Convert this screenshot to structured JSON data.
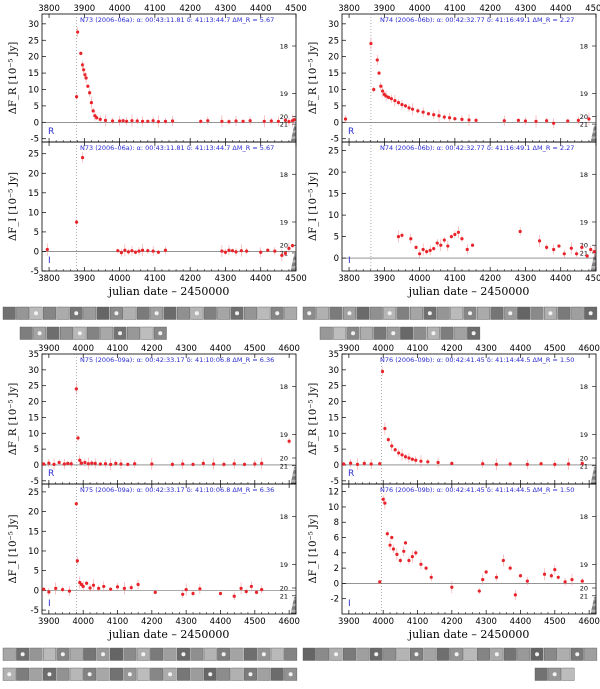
{
  "accent_colors": {
    "data": "#e8232a",
    "header": "#2a2ad0",
    "axis": "#000000",
    "stamp_bg": "#8a8a8a"
  },
  "chart_data": [
    {
      "type": "scatter",
      "panel_id": "N73-R",
      "band": "R",
      "header": "N73 (2006–06a):  α: 00:43:11.81  δ: 41:13:44.7  ΔM_R = 5.67",
      "ylabel": "ΔF_R [10⁻⁵ Jy]",
      "xlabel": "",
      "xlim": [
        3780,
        4500
      ],
      "ylim": [
        -6,
        33
      ],
      "xticks": [
        3800,
        3900,
        4000,
        4100,
        4200,
        4300,
        4400,
        4500
      ],
      "yticks": [
        -5,
        0,
        5,
        10,
        15,
        20,
        25,
        30
      ],
      "mag_ticks": [
        "18",
        "19",
        "20",
        "21"
      ],
      "eruption_x": 3878,
      "points": [
        [
          3745,
          0.2
        ],
        [
          3760,
          0.8
        ],
        [
          3770,
          -0.3
        ],
        [
          3878,
          7.8
        ],
        [
          3881,
          27.5
        ],
        [
          3890,
          21
        ],
        [
          3895,
          17.5
        ],
        [
          3898,
          16
        ],
        [
          3902,
          14.5
        ],
        [
          3905,
          13.5
        ],
        [
          3910,
          11
        ],
        [
          3915,
          9
        ],
        [
          3920,
          6
        ],
        [
          3925,
          3.5
        ],
        [
          3930,
          2
        ],
        [
          3935,
          1.4
        ],
        [
          3945,
          0.9
        ],
        [
          3960,
          0.6
        ],
        [
          3980,
          0.4
        ],
        [
          4000,
          0.4
        ],
        [
          4010,
          0.5
        ],
        [
          4020,
          0.3
        ],
        [
          4035,
          0.5
        ],
        [
          4050,
          0.4
        ],
        [
          4065,
          0.3
        ],
        [
          4080,
          0.3
        ],
        [
          4095,
          0.5
        ],
        [
          4110,
          0.2
        ],
        [
          4130,
          0.3
        ],
        [
          4150,
          0.4
        ],
        [
          4230,
          0.3
        ],
        [
          4250,
          0.5
        ],
        [
          4290,
          0.3
        ],
        [
          4310,
          0.2
        ],
        [
          4330,
          0.4
        ],
        [
          4350,
          0.3
        ],
        [
          4370,
          0.5
        ],
        [
          4410,
          0.3
        ],
        [
          4430,
          0.4
        ],
        [
          4450,
          0.3
        ],
        [
          4470,
          0.6
        ],
        [
          4480,
          0.2
        ],
        [
          4490,
          0.5
        ],
        [
          4495,
          0.8
        ]
      ]
    },
    {
      "type": "scatter",
      "panel_id": "N73-I",
      "band": "I",
      "header": "N73 (2006–06a):  α: 00:43:11.81  δ: 41:13:44.7  ΔM_R = 5.67",
      "ylabel": "ΔF_I [10⁻⁵ Jy]",
      "xlabel": "julian date – 2450000",
      "xlim": [
        3780,
        4500
      ],
      "ylim": [
        -5,
        28
      ],
      "xticks": [
        3800,
        3900,
        4000,
        4100,
        4200,
        4300,
        4400,
        4500
      ],
      "yticks": [
        -5,
        0,
        5,
        10,
        15,
        20,
        25
      ],
      "mag_ticks": [
        "18",
        "19",
        "20",
        "21"
      ],
      "eruption_x": 3878,
      "points": [
        [
          3752,
          1.0
        ],
        [
          3768,
          0.8
        ],
        [
          3795,
          0.5
        ],
        [
          3878,
          7.5
        ],
        [
          3895,
          24
        ],
        [
          3995,
          0.2
        ],
        [
          4005,
          -0.3
        ],
        [
          4015,
          0.3
        ],
        [
          4025,
          -0.1
        ],
        [
          4035,
          0.2
        ],
        [
          4045,
          -0.2
        ],
        [
          4055,
          0.1
        ],
        [
          4065,
          0.3
        ],
        [
          4080,
          0.2
        ],
        [
          4095,
          0.1
        ],
        [
          4110,
          -0.2
        ],
        [
          4130,
          0.3
        ],
        [
          4290,
          0.1
        ],
        [
          4300,
          -0.2
        ],
        [
          4310,
          0.3
        ],
        [
          4320,
          0.2
        ],
        [
          4330,
          -0.1
        ],
        [
          4345,
          0.2
        ],
        [
          4360,
          0.1
        ],
        [
          4400,
          -0.2
        ],
        [
          4420,
          0.3
        ],
        [
          4440,
          0.1
        ],
        [
          4460,
          -1
        ],
        [
          4470,
          -0.5
        ],
        [
          4480,
          0.8
        ],
        [
          4490,
          1.5
        ]
      ]
    },
    {
      "type": "scatter",
      "panel_id": "N74-R",
      "band": "R",
      "header": "N74 (2006–06b):  α: 00:42:32.77  δ: 41:16:49.1  ΔM_R = 2.27",
      "ylabel": "ΔF_R [10⁻⁵ Jy]",
      "xlabel": "",
      "xlim": [
        3780,
        4500
      ],
      "ylim": [
        -6,
        33
      ],
      "xticks": [
        3800,
        3900,
        4000,
        4100,
        4200,
        4300,
        4400,
        4500
      ],
      "yticks": [
        -5,
        0,
        5,
        10,
        15,
        20,
        25,
        30
      ],
      "mag_ticks": [
        "18",
        "19",
        "20",
        "21"
      ],
      "eruption_x": 3862,
      "points": [
        [
          3760,
          3
        ],
        [
          3790,
          1
        ],
        [
          3862,
          24
        ],
        [
          3870,
          10
        ],
        [
          3880,
          19
        ],
        [
          3885,
          15
        ],
        [
          3890,
          11
        ],
        [
          3895,
          9.5
        ],
        [
          3900,
          8.5
        ],
        [
          3905,
          8
        ],
        [
          3912,
          7.6
        ],
        [
          3920,
          7.2
        ],
        [
          3930,
          6.6
        ],
        [
          3940,
          6
        ],
        [
          3950,
          5.4
        ],
        [
          3960,
          5
        ],
        [
          3970,
          4.4
        ],
        [
          3980,
          4
        ],
        [
          3995,
          3.5
        ],
        [
          4010,
          3.1
        ],
        [
          4025,
          2.6
        ],
        [
          4040,
          2.3
        ],
        [
          4055,
          2
        ],
        [
          4070,
          1.6
        ],
        [
          4085,
          1.4
        ],
        [
          4100,
          1.1
        ],
        [
          4120,
          0.9
        ],
        [
          4140,
          0.7
        ],
        [
          4160,
          0.6
        ],
        [
          4240,
          0.5
        ],
        [
          4280,
          0.6
        ],
        [
          4300,
          0.4
        ],
        [
          4330,
          0.3
        ],
        [
          4360,
          0.5
        ],
        [
          4380,
          -0.3
        ],
        [
          4420,
          0.4
        ],
        [
          4450,
          0.6
        ],
        [
          4480,
          1
        ]
      ]
    },
    {
      "type": "scatter",
      "panel_id": "N74-I",
      "band": "I",
      "header": "N74 (2006–06b):  α: 00:42:32.77  δ: 41:16:49.1  ΔM_R = 2.27",
      "ylabel": "ΔF_I [10⁻⁵ Jy]",
      "xlabel": "julian date – 2450000",
      "xlim": [
        3780,
        4500
      ],
      "ylim": [
        -3,
        27
      ],
      "xticks": [
        3800,
        3900,
        4000,
        4100,
        4200,
        4300,
        4400,
        4500
      ],
      "yticks": [
        0,
        5,
        10,
        15,
        20,
        25
      ],
      "mag_ticks": [
        "18",
        "19",
        "20",
        "21"
      ],
      "eruption_x": 3862,
      "points": [
        [
          3765,
          9
        ],
        [
          3770,
          12
        ],
        [
          3940,
          5
        ],
        [
          3950,
          5.3
        ],
        [
          3975,
          4.5
        ],
        [
          3990,
          2.5
        ],
        [
          4000,
          1
        ],
        [
          4010,
          2
        ],
        [
          4020,
          1.5
        ],
        [
          4030,
          1.8
        ],
        [
          4040,
          2.2
        ],
        [
          4050,
          3.5
        ],
        [
          4060,
          3
        ],
        [
          4070,
          4.2
        ],
        [
          4080,
          2.8
        ],
        [
          4090,
          5
        ],
        [
          4100,
          5.5
        ],
        [
          4110,
          6
        ],
        [
          4120,
          4.5
        ],
        [
          4135,
          2
        ],
        [
          4150,
          3
        ],
        [
          4285,
          6.2
        ],
        [
          4340,
          4
        ],
        [
          4360,
          2.5
        ],
        [
          4380,
          2
        ],
        [
          4395,
          2.8
        ],
        [
          4410,
          1
        ],
        [
          4430,
          2.3
        ],
        [
          4445,
          1
        ],
        [
          4460,
          2.5
        ],
        [
          4475,
          0.5
        ],
        [
          4485,
          2
        ],
        [
          4495,
          1.5
        ]
      ]
    },
    {
      "type": "scatter",
      "panel_id": "N75-R",
      "band": "R",
      "header": "N75 (2006–09a):  α: 00:42:33.17  δ: 41:10:06.8  ΔM_R = 6.36",
      "ylabel": "ΔF_R [10⁻⁵ Jy]",
      "xlabel": "",
      "xlim": [
        3880,
        4620
      ],
      "ylim": [
        -6,
        35
      ],
      "xticks": [
        3900,
        4000,
        4100,
        4200,
        4300,
        4400,
        4500,
        4600
      ],
      "yticks": [
        -5,
        0,
        5,
        10,
        15,
        20,
        25,
        30,
        35
      ],
      "mag_ticks": [
        "18",
        "19",
        "20",
        "21"
      ],
      "eruption_x": 3980,
      "points": [
        [
          3885,
          0.3
        ],
        [
          3900,
          0.6
        ],
        [
          3915,
          0.2
        ],
        [
          3930,
          0.8
        ],
        [
          3945,
          0.3
        ],
        [
          3955,
          0.5
        ],
        [
          3965,
          0.4
        ],
        [
          3980,
          24
        ],
        [
          3985,
          8.5
        ],
        [
          3990,
          1.5
        ],
        [
          3995,
          0.6
        ],
        [
          4005,
          0.8
        ],
        [
          4015,
          0.4
        ],
        [
          4025,
          0.6
        ],
        [
          4035,
          0.5
        ],
        [
          4050,
          0.3
        ],
        [
          4065,
          0.4
        ],
        [
          4080,
          0.2
        ],
        [
          4095,
          0.5
        ],
        [
          4110,
          0.3
        ],
        [
          4130,
          0.2
        ],
        [
          4150,
          0.4
        ],
        [
          4200,
          0.3
        ],
        [
          4260,
          0.2
        ],
        [
          4290,
          0.3
        ],
        [
          4320,
          0.2
        ],
        [
          4350,
          0.5
        ],
        [
          4380,
          0.3
        ],
        [
          4410,
          0.2
        ],
        [
          4440,
          0.4
        ],
        [
          4470,
          0.2
        ],
        [
          4500,
          0.3
        ],
        [
          4520,
          0.5
        ],
        [
          4600,
          7.5
        ]
      ]
    },
    {
      "type": "scatter",
      "panel_id": "N75-I",
      "band": "I",
      "header": "N75 (2006–09a):  α: 00:42:33.17  δ: 41:10:06.8  ΔM_R = 6.36",
      "ylabel": "ΔF_I [10⁻⁵ Jy]",
      "xlabel": "julian date – 2450000",
      "xlim": [
        3880,
        4620
      ],
      "ylim": [
        -6,
        27
      ],
      "xticks": [
        3900,
        4000,
        4100,
        4200,
        4300,
        4400,
        4500,
        4600
      ],
      "yticks": [
        -5,
        0,
        5,
        10,
        15,
        20,
        25
      ],
      "mag_ticks": [
        "18",
        "19",
        "20",
        "21"
      ],
      "eruption_x": 3980,
      "points": [
        [
          3885,
          0.3
        ],
        [
          3900,
          -0.4
        ],
        [
          3920,
          0.5
        ],
        [
          3940,
          0.2
        ],
        [
          3960,
          -0.2
        ],
        [
          3980,
          22
        ],
        [
          3983,
          7.5
        ],
        [
          3990,
          2
        ],
        [
          3995,
          1.5
        ],
        [
          4000,
          1
        ],
        [
          4010,
          1.8
        ],
        [
          4020,
          0.6
        ],
        [
          4030,
          1.3
        ],
        [
          4045,
          0.5
        ],
        [
          4060,
          1
        ],
        [
          4080,
          0.3
        ],
        [
          4100,
          0.9
        ],
        [
          4120,
          0.5
        ],
        [
          4140,
          0.7
        ],
        [
          4160,
          1.5
        ],
        [
          4210,
          -0.5
        ],
        [
          4290,
          -1
        ],
        [
          4300,
          0.2
        ],
        [
          4320,
          -0.8
        ],
        [
          4340,
          0.4
        ],
        [
          4400,
          -0.8
        ],
        [
          4440,
          -1.5
        ],
        [
          4460,
          0.5
        ],
        [
          4475,
          -0.3
        ],
        [
          4490,
          1
        ],
        [
          4505,
          -0.5
        ],
        [
          4520,
          0.2
        ]
      ]
    },
    {
      "type": "scatter",
      "panel_id": "N76-R",
      "band": "R",
      "header": "N76 (2006–09b):  α: 00:42:41.45  δ: 41:14:44.5  ΔM_R = 1.50",
      "ylabel": "ΔF_R [10⁻⁵ Jy]",
      "xlabel": "",
      "xlim": [
        3880,
        4620
      ],
      "ylim": [
        -6,
        35
      ],
      "xticks": [
        3900,
        4000,
        4100,
        4200,
        4300,
        4400,
        4500,
        4600
      ],
      "yticks": [
        -5,
        0,
        5,
        10,
        15,
        20,
        25,
        30,
        35
      ],
      "mag_ticks": [
        "18",
        "19",
        "20",
        "21"
      ],
      "eruption_x": 3995,
      "points": [
        [
          3885,
          0.3
        ],
        [
          3905,
          0.6
        ],
        [
          3925,
          0.2
        ],
        [
          3945,
          0.5
        ],
        [
          3965,
          0.3
        ],
        [
          3990,
          0.4
        ],
        [
          3998,
          29.5
        ],
        [
          4005,
          11.5
        ],
        [
          4015,
          8
        ],
        [
          4025,
          6
        ],
        [
          4035,
          4.8
        ],
        [
          4045,
          3.8
        ],
        [
          4055,
          3.2
        ],
        [
          4065,
          2.6
        ],
        [
          4075,
          2.2
        ],
        [
          4085,
          1.8
        ],
        [
          4095,
          1.5
        ],
        [
          4110,
          1.2
        ],
        [
          4130,
          1
        ],
        [
          4160,
          0.8
        ],
        [
          4200,
          0.5
        ],
        [
          4290,
          0.4
        ],
        [
          4330,
          0.2
        ],
        [
          4370,
          0.3
        ],
        [
          4420,
          0.2
        ],
        [
          4460,
          0.4
        ],
        [
          4500,
          0.2
        ],
        [
          4540,
          0.3
        ],
        [
          4580,
          0.5
        ]
      ]
    },
    {
      "type": "scatter",
      "panel_id": "N76-I",
      "band": "I",
      "header": "N76 (2006–09b):  α: 00:42:41.45  δ: 41:14:44.5  ΔM_R = 1.50",
      "ylabel": "ΔF_I [10⁻⁵ Jy]",
      "xlabel": "julian date – 2450000",
      "xlim": [
        3880,
        4620
      ],
      "ylim": [
        -4,
        13
      ],
      "xticks": [
        3900,
        4000,
        4100,
        4200,
        4300,
        4400,
        4500,
        4600
      ],
      "yticks": [
        -2,
        0,
        2,
        4,
        6,
        8,
        10,
        12
      ],
      "mag_ticks": [
        "18",
        "19",
        "20",
        "21"
      ],
      "eruption_x": 3995,
      "points": [
        [
          3990,
          0.2
        ],
        [
          4000,
          11
        ],
        [
          4005,
          10.5
        ],
        [
          4012,
          6.5
        ],
        [
          4020,
          5
        ],
        [
          4025,
          6
        ],
        [
          4030,
          4.5
        ],
        [
          4040,
          3.8
        ],
        [
          4050,
          3
        ],
        [
          4060,
          4.2
        ],
        [
          4065,
          5.3
        ],
        [
          4075,
          3
        ],
        [
          4085,
          3.5
        ],
        [
          4095,
          4
        ],
        [
          4110,
          2.5
        ],
        [
          4125,
          2
        ],
        [
          4140,
          0.8
        ],
        [
          4200,
          -0.5
        ],
        [
          4280,
          -1
        ],
        [
          4290,
          0.5
        ],
        [
          4300,
          1.5
        ],
        [
          4330,
          0.8
        ],
        [
          4350,
          3
        ],
        [
          4370,
          2
        ],
        [
          4385,
          -1.5
        ],
        [
          4400,
          1
        ],
        [
          4420,
          0.3
        ],
        [
          4470,
          1.2
        ],
        [
          4490,
          1
        ],
        [
          4500,
          1.8
        ],
        [
          4510,
          0.8
        ],
        [
          4530,
          0.2
        ],
        [
          4550,
          0.5
        ],
        [
          4580,
          0.3
        ]
      ]
    }
  ]
}
